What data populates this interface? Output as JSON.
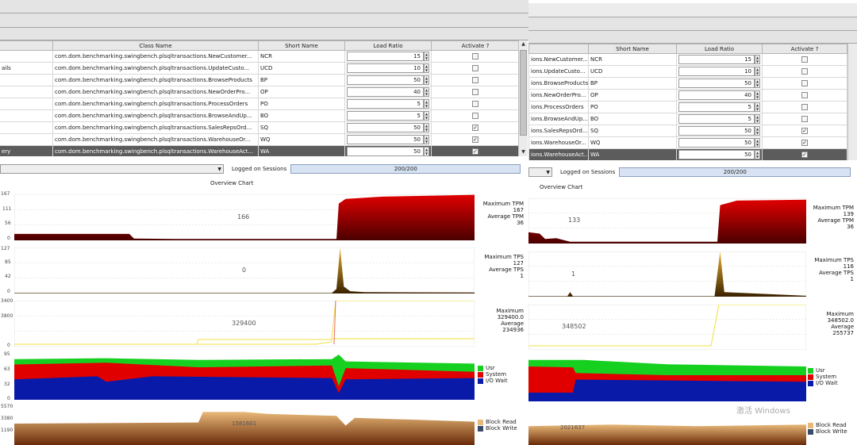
{
  "colors": {
    "tpm_dark": "#4a0000",
    "tpm_bright": "#e00000",
    "tps_dark": "#3a2200",
    "tps_bright": "#e8b030",
    "users_line": "#f0e040",
    "cpu_usr": "#16d020",
    "cpu_system": "#e00000",
    "cpu_iowait": "#0a1aa8",
    "io_read": "#e8b878",
    "io_write": "#6a2a08",
    "selected_row": "#5c5c5c",
    "sessions_bg": "#d7e3f2"
  },
  "left": {
    "table": {
      "headers": {
        "class_name": "Class Name",
        "short_name": "Short Name",
        "load_ratio": "Load Ratio",
        "activate": "Activate ?"
      },
      "rows": [
        {
          "prefix": "",
          "class_name": "com.dom.benchmarking.swingbench.plsqltransactions.NewCustomer...",
          "short": "NCR",
          "ratio": "15",
          "checked": false
        },
        {
          "prefix": "ails",
          "class_name": "com.dom.benchmarking.swingbench.plsqltransactions.UpdateCusto...",
          "short": "UCD",
          "ratio": "10",
          "checked": false
        },
        {
          "prefix": "",
          "class_name": "com.dom.benchmarking.swingbench.plsqltransactions.BrowseProducts",
          "short": "BP",
          "ratio": "50",
          "checked": false
        },
        {
          "prefix": "",
          "class_name": "com.dom.benchmarking.swingbench.plsqltransactions.NewOrderPro...",
          "short": "OP",
          "ratio": "40",
          "checked": false
        },
        {
          "prefix": "",
          "class_name": "com.dom.benchmarking.swingbench.plsqltransactions.ProcessOrders",
          "short": "PO",
          "ratio": "5",
          "checked": false
        },
        {
          "prefix": "",
          "class_name": "com.dom.benchmarking.swingbench.plsqltransactions.BrowseAndUp...",
          "short": "BO",
          "ratio": "5",
          "checked": false
        },
        {
          "prefix": "",
          "class_name": "com.dom.benchmarking.swingbench.plsqltransactions.SalesRepsOrd...",
          "short": "SQ",
          "ratio": "50",
          "checked": true
        },
        {
          "prefix": "",
          "class_name": "com.dom.benchmarking.swingbench.plsqltransactions.WarehouseOr...",
          "short": "WQ",
          "ratio": "50",
          "checked": true
        },
        {
          "prefix": "ery",
          "class_name": "com.dom.benchmarking.swingbench.plsqltransactions.WarehouseAct...",
          "short": "WA",
          "ratio": "50",
          "checked": true,
          "selected": true
        }
      ]
    },
    "sessions": {
      "label": "Logged on Sessions",
      "value": "200/200"
    },
    "chart_title": "Overview Chart",
    "tpm": {
      "current": "166",
      "max_label": "Maximum TPM",
      "max": "167",
      "avg_label": "Average TPM",
      "avg": "36",
      "ticks": [
        "167",
        "111",
        "56",
        "0"
      ]
    },
    "tps": {
      "current": "0",
      "max_label": "Maximum TPS",
      "max": "127",
      "avg_label": "Average TPS",
      "avg": "1",
      "ticks": [
        "127",
        "85",
        "42",
        "0"
      ]
    },
    "users": {
      "current": "329400",
      "max_label": "Maximum",
      "max": "329400.0",
      "avg_label": "Average",
      "avg": "234936",
      "ticks": [
        "3400",
        "3800",
        "0"
      ]
    },
    "cpu": {
      "ticks": [
        "95",
        "63",
        "32",
        "0"
      ],
      "legend": [
        "Usr",
        "System",
        "I/O Wait"
      ]
    },
    "io": {
      "current": "1581601",
      "ticks": [
        "5570",
        "3380",
        "1190"
      ],
      "legend": [
        "Block Read",
        "Block Write"
      ]
    }
  },
  "right": {
    "table": {
      "headers": {
        "short_name": "Short Name",
        "load_ratio": "Load Ratio",
        "activate": "Activate ?"
      },
      "rows": [
        {
          "class_name": "ions.NewCustomer...",
          "short": "NCR",
          "ratio": "15",
          "checked": false
        },
        {
          "class_name": "ions.UpdateCusto...",
          "short": "UCD",
          "ratio": "10",
          "checked": false
        },
        {
          "class_name": "ions.BrowseProducts",
          "short": "BP",
          "ratio": "50",
          "checked": false
        },
        {
          "class_name": "ions.NewOrderPro...",
          "short": "OP",
          "ratio": "40",
          "checked": false
        },
        {
          "class_name": "ions.ProcessOrders",
          "short": "PO",
          "ratio": "5",
          "checked": false
        },
        {
          "class_name": "ions.BrowseAndUp...",
          "short": "BO",
          "ratio": "5",
          "checked": false
        },
        {
          "class_name": "ions.SalesRepsOrd...",
          "short": "SQ",
          "ratio": "50",
          "checked": true
        },
        {
          "class_name": "ions.WarehouseOr...",
          "short": "WQ",
          "ratio": "50",
          "checked": true
        },
        {
          "class_name": "ions.WarehouseAct...",
          "short": "WA",
          "ratio": "50",
          "checked": true,
          "selected": true
        }
      ]
    },
    "sessions": {
      "label": "Logged on Sessions",
      "value": "200/200"
    },
    "chart_title": "Overview Chart",
    "tpm": {
      "current": "133",
      "max_label": "Maximum TPM",
      "max": "139",
      "avg_label": "Average TPM",
      "avg": "36"
    },
    "tps": {
      "current": "1",
      "max_label": "Maximum TPS",
      "max": "116",
      "avg_label": "Average TPS",
      "avg": "1"
    },
    "users": {
      "current": "348502",
      "max_label": "Maximum",
      "max": "348502.0",
      "avg_label": "Average",
      "avg": "255737"
    },
    "cpu": {
      "legend": [
        "Usr",
        "System",
        "I/O Wait"
      ]
    },
    "io": {
      "current": "2021637",
      "legend": [
        "Block Read",
        "Block Write"
      ]
    },
    "watermark": "激活 Windows"
  }
}
